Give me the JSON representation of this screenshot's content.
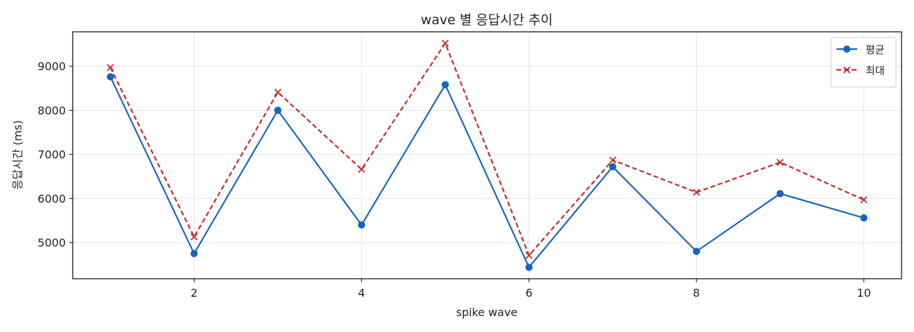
{
  "chart_data": {
    "type": "line",
    "title": "wave 별 응답시간 추이",
    "xlabel": "spike wave",
    "ylabel": "응답시간 (ms)",
    "x": [
      1,
      2,
      3,
      4,
      5,
      6,
      7,
      8,
      9,
      10
    ],
    "xlim": [
      0.55,
      10.45
    ],
    "ylim": [
      4180,
      9780
    ],
    "xticks": [
      2,
      4,
      6,
      8,
      10
    ],
    "yticks": [
      5000,
      6000,
      7000,
      8000,
      9000
    ],
    "grid": true,
    "legend_position": "top-right",
    "series": [
      {
        "name": "평균",
        "values": [
          8760,
          4750,
          8000,
          5400,
          8580,
          4440,
          6720,
          4800,
          6110,
          5560
        ],
        "color": "#1565c0",
        "marker": "circle",
        "style": "solid"
      },
      {
        "name": "최대",
        "values": [
          8970,
          5130,
          8410,
          6660,
          9520,
          4710,
          6870,
          6140,
          6820,
          5970
        ],
        "color": "#c62828",
        "marker": "x",
        "style": "dashed"
      }
    ]
  }
}
